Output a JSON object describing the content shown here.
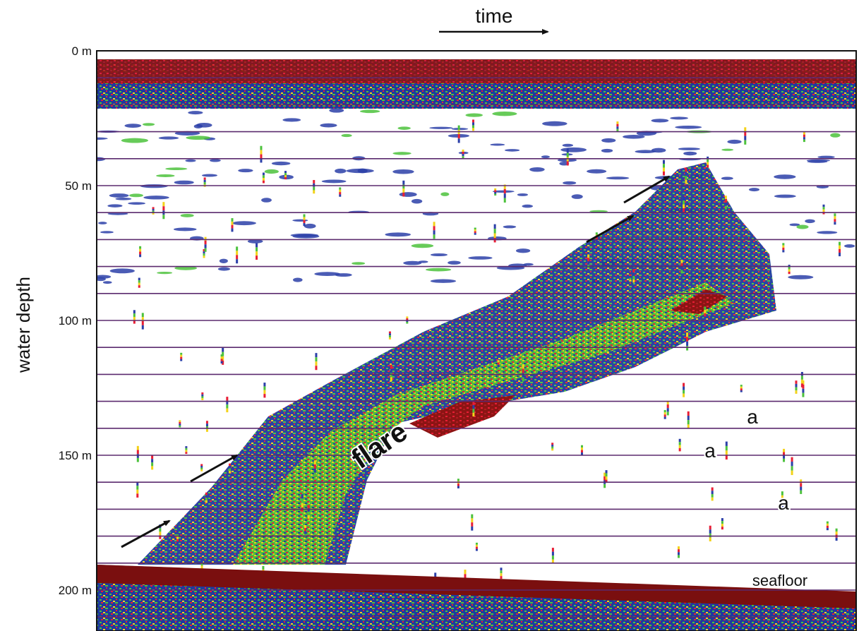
{
  "chart_data": {
    "type": "heatmap",
    "title": "",
    "xlabel": "time",
    "ylabel": "water depth",
    "y_axis": {
      "ticks": [
        {
          "value": 0,
          "label": "0 m"
        },
        {
          "value": 50,
          "label": "50 m"
        },
        {
          "value": 100,
          "label": "100 m"
        },
        {
          "value": 150,
          "label": "150 m"
        },
        {
          "value": 200,
          "label": "200 m"
        }
      ],
      "ylim": [
        0,
        222
      ],
      "inverted": true,
      "grid_interval": 10,
      "grid": true
    },
    "x_axis": {
      "direction": "time increases to the right",
      "ticks": []
    },
    "annotations": [
      {
        "text": "flare"
      },
      {
        "text": "a"
      },
      {
        "text": "a"
      },
      {
        "text": "a"
      },
      {
        "text": "seafloor"
      }
    ],
    "features": {
      "surface_layer_depth": [
        0,
        22
      ],
      "scattering_layer_depth": [
        22,
        86
      ],
      "seafloor_depth_start": 202,
      "seafloor_depth_end": 210,
      "flare_base_depth": 200,
      "flare_top_depth": 47
    },
    "colors": {
      "grid": "#5b2a6e",
      "strong": "#7a0f0f",
      "high": "#e81e35",
      "mid_high": "#f3d21a",
      "mid": "#4cc23c",
      "low": "#2b3fa8",
      "background": "#ffffff"
    }
  }
}
